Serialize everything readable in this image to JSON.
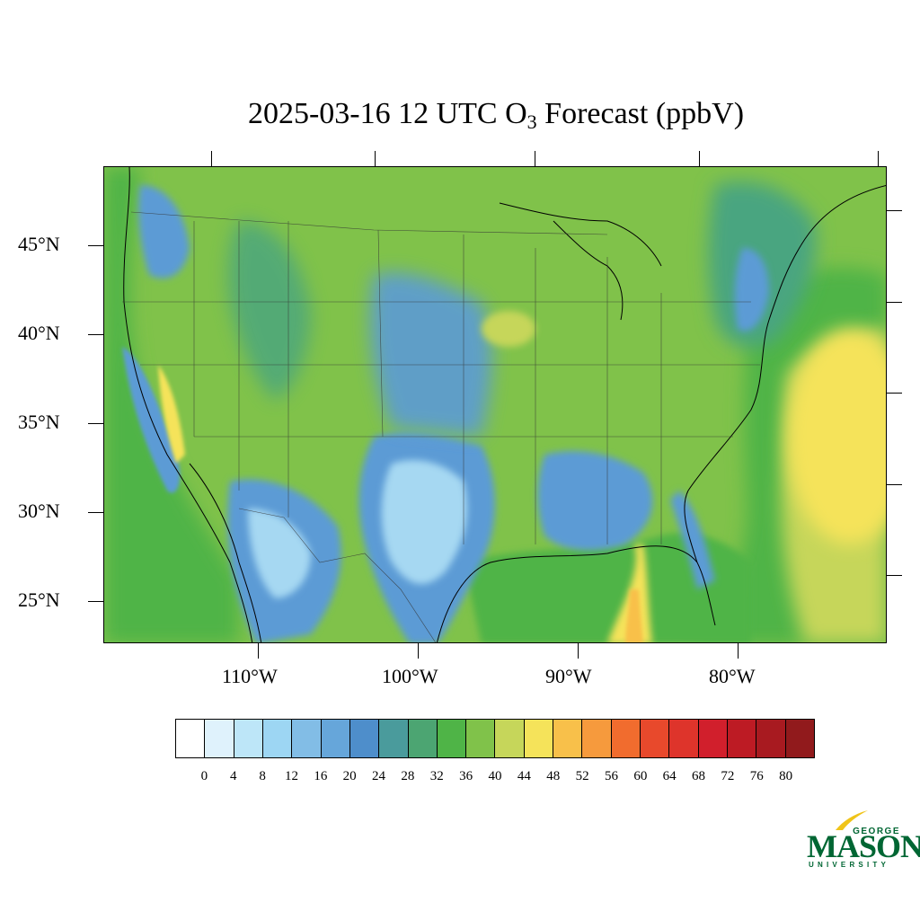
{
  "title": {
    "prefix": "2025-03-16 12 UTC O",
    "subscript": "3",
    "suffix": " Forecast (ppbV)"
  },
  "map": {
    "lat_labels": [
      "45°N",
      "40°N",
      "35°N",
      "30°N",
      "25°N"
    ],
    "lon_labels": [
      "110°W",
      "100°W",
      "90°W",
      "80°W"
    ],
    "background_colors": {
      "land_green": "#7cc24a",
      "blue": "#5b9bd5",
      "light_blue": "#a6d8f2",
      "teal": "#4aa580",
      "yellow_green": "#c6d65a",
      "yellow": "#f5e35a",
      "orange": "#f5b745"
    }
  },
  "colorbar": {
    "colors": [
      "#ffffff",
      "#dff2fc",
      "#bde6f8",
      "#9dd6f3",
      "#82bde6",
      "#66a6da",
      "#4e8ecb",
      "#4a9b9c",
      "#4ca572",
      "#4fb447",
      "#80c24a",
      "#c6d65a",
      "#f5e35a",
      "#f8c04a",
      "#f69a3d",
      "#f16c2e",
      "#e8492c",
      "#de342b",
      "#d11f2c",
      "#bd1b24",
      "#a81a20",
      "#911a1c"
    ],
    "labels": [
      "0",
      "4",
      "8",
      "12",
      "16",
      "20",
      "24",
      "28",
      "32",
      "36",
      "40",
      "44",
      "48",
      "52",
      "56",
      "60",
      "64",
      "68",
      "72",
      "76",
      "80"
    ]
  },
  "logo": {
    "george": "GEORGE",
    "mason": "MASON",
    "university": "UNIVERSITY"
  }
}
